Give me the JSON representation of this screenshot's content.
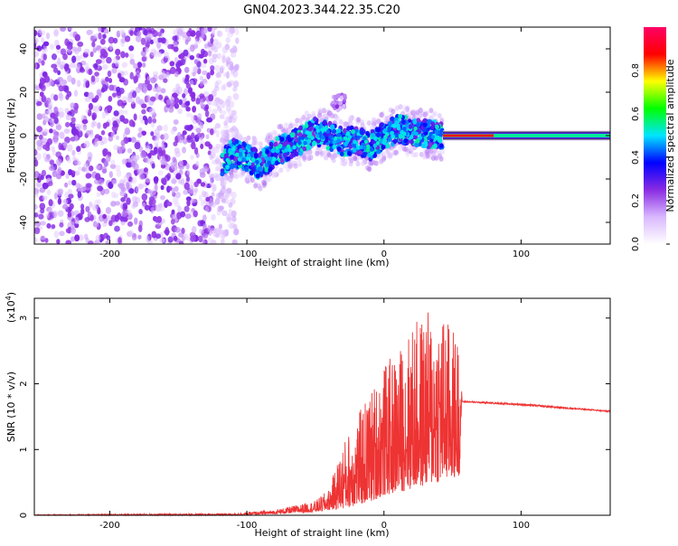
{
  "title": "GN04.2023.344.22.35.C20",
  "chart_data": [
    {
      "type": "heatmap",
      "title": "GN04.2023.344.22.35.C20",
      "xlabel": "Height of straight line (km)",
      "ylabel": "Frequency (Hz)",
      "xlim": [
        -255,
        165
      ],
      "ylim": [
        -50,
        50
      ],
      "x_ticks": [
        -200,
        -100,
        0,
        100
      ],
      "y_ticks": [
        -40,
        -20,
        0,
        20,
        40
      ],
      "grid": false,
      "colorbar": {
        "label": "Normalized spectral amplitude",
        "range": [
          0,
          1
        ],
        "ticks": [
          "0.0",
          "0.2",
          "0.4",
          "0.6",
          "0.8"
        ],
        "colormap": [
          "#ffffff",
          "#d9b8ff",
          "#8a2be2",
          "#0000ff",
          "#00e5ff",
          "#00ff00",
          "#ffff00",
          "#ff0000",
          "#ff0066"
        ]
      },
      "regions": [
        {
          "x": [
            -255,
            -115
          ],
          "freq_range": [
            -50,
            50
          ],
          "amplitude": "noise"
        },
        {
          "x": [
            -115,
            43
          ],
          "freq_track": [
            [
              -118,
              -12
            ],
            [
              -110,
              -8
            ],
            [
              -100,
              -10
            ],
            [
              -90,
              -14
            ],
            [
              -80,
              -8
            ],
            [
              -70,
              -5
            ],
            [
              -60,
              -2
            ],
            [
              -50,
              2
            ],
            [
              -40,
              0
            ],
            [
              -30,
              -3
            ],
            [
              -20,
              -2
            ],
            [
              -10,
              -5
            ],
            [
              0,
              0
            ],
            [
              10,
              3
            ],
            [
              20,
              2
            ],
            [
              30,
              1
            ],
            [
              43,
              0
            ]
          ]
        },
        {
          "x": [
            43,
            165
          ],
          "freq": 0,
          "amplitude_peak": "red"
        }
      ]
    },
    {
      "type": "line",
      "xlabel": "Height of straight line (km)",
      "ylabel": "SNR (10 * v/v)",
      "multiplier": "(x10",
      "multiplier_exp": "4",
      "multiplier_close": ")",
      "xlim": [
        -255,
        165
      ],
      "ylim": [
        0,
        3.3
      ],
      "x_ticks": [
        -200,
        -100,
        0,
        100
      ],
      "y_ticks": [
        0,
        1,
        2,
        3
      ],
      "color": "#ee3333",
      "envelope": [
        {
          "x": -255,
          "low": 0.0,
          "high": 0.01
        },
        {
          "x": -110,
          "low": 0.0,
          "high": 0.03
        },
        {
          "x": -80,
          "low": 0.02,
          "high": 0.08
        },
        {
          "x": -50,
          "low": 0.05,
          "high": 0.22
        },
        {
          "x": -40,
          "low": 0.08,
          "high": 0.4
        },
        {
          "x": -30,
          "low": 0.1,
          "high": 1.1
        },
        {
          "x": -20,
          "low": 0.15,
          "high": 1.5
        },
        {
          "x": -10,
          "low": 0.2,
          "high": 1.9
        },
        {
          "x": 0,
          "low": 0.3,
          "high": 2.3
        },
        {
          "x": 10,
          "low": 0.35,
          "high": 2.5
        },
        {
          "x": 20,
          "low": 0.4,
          "high": 2.9
        },
        {
          "x": 30,
          "low": 0.45,
          "high": 3.1
        },
        {
          "x": 40,
          "low": 0.5,
          "high": 3.2
        },
        {
          "x": 55,
          "low": 0.6,
          "high": 2.7
        },
        {
          "x": 57,
          "low": 1.72,
          "high": 1.74
        },
        {
          "x": 100,
          "low": 1.67,
          "high": 1.7
        },
        {
          "x": 165,
          "low": 1.57,
          "high": 1.59
        }
      ]
    }
  ]
}
